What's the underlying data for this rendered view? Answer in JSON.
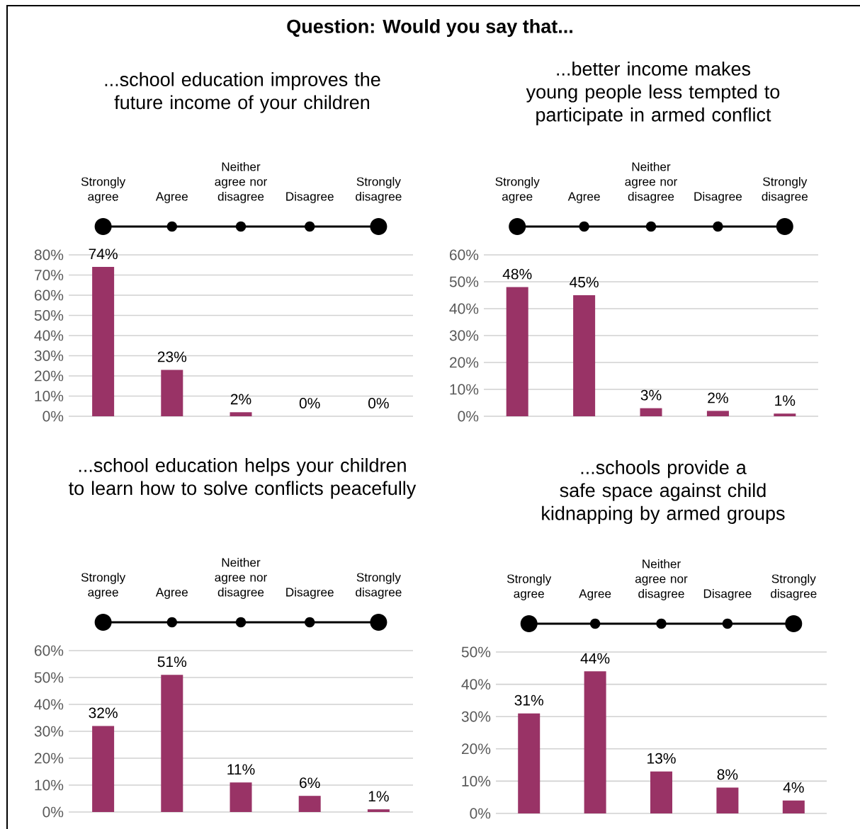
{
  "chart_data": [
    {
      "type": "bar",
      "title": "Question: Would you say that...",
      "subtitle": "...school education improves the future income of your children",
      "categories": [
        "Strongly agree",
        "Agree",
        "Neither agree nor disagree",
        "Disagree",
        "Strongly disagree"
      ],
      "values": [
        74,
        23,
        2,
        0,
        0
      ],
      "value_labels": [
        "74%",
        "23%",
        "2%",
        "0%",
        "0%"
      ],
      "color": "#993366",
      "ylim": [
        0,
        80
      ],
      "yticks": [
        {
          "value": 0,
          "label": "0%"
        },
        {
          "value": 10,
          "label": "10%"
        },
        {
          "value": 20,
          "label": "20%"
        },
        {
          "value": 30,
          "label": "30%"
        },
        {
          "value": 40,
          "label": "40%"
        },
        {
          "value": 50,
          "label": "50%"
        },
        {
          "value": 60,
          "label": "60%"
        },
        {
          "value": 70,
          "label": "70%"
        },
        {
          "value": 80,
          "label": "80%"
        }
      ],
      "grid": "y"
    },
    {
      "type": "bar",
      "title": "...better income makes young people less tempted to participate in armed conflict",
      "categories": [
        "Strongly agree",
        "Agree",
        "Neither agree nor disagree",
        "Disagree",
        "Strongly disagree"
      ],
      "values": [
        48,
        45,
        3,
        2,
        1
      ],
      "value_labels": [
        "48%",
        "45%",
        "3%",
        "2%",
        "1%"
      ],
      "color": "#993366",
      "ylim": [
        0,
        60
      ],
      "yticks": [
        {
          "value": 0,
          "label": "0%"
        },
        {
          "value": 10,
          "label": "10%"
        },
        {
          "value": 20,
          "label": "20%"
        },
        {
          "value": 30,
          "label": "30%"
        },
        {
          "value": 40,
          "label": "40%"
        },
        {
          "value": 50,
          "label": "50%"
        },
        {
          "value": 60,
          "label": "60%"
        }
      ],
      "grid": "y"
    },
    {
      "type": "bar",
      "title": "...school education helps your children to learn how to solve conflicts peacefully",
      "categories": [
        "Strongly agree",
        "Agree",
        "Neither agree nor disagree",
        "Disagree",
        "Strongly disagree"
      ],
      "values": [
        32,
        51,
        11,
        6,
        1
      ],
      "value_labels": [
        "32%",
        "51%",
        "11%",
        "6%",
        "1%"
      ],
      "color": "#993366",
      "ylim": [
        0,
        60
      ],
      "yticks": [
        {
          "value": 0,
          "label": "0%"
        },
        {
          "value": 10,
          "label": "10%"
        },
        {
          "value": 20,
          "label": "20%"
        },
        {
          "value": 30,
          "label": "30%"
        },
        {
          "value": 40,
          "label": "40%"
        },
        {
          "value": 50,
          "label": "50%"
        },
        {
          "value": 60,
          "label": "60%"
        }
      ],
      "grid": "y"
    },
    {
      "type": "bar",
      "title": "...schools provide a safe space against child kidnapping by armed groups",
      "categories": [
        "Strongly agree",
        "Agree",
        "Neither agree nor disagree",
        "Disagree",
        "Strongly disagree"
      ],
      "values": [
        31,
        44,
        13,
        8,
        4
      ],
      "value_labels": [
        "31%",
        "44%",
        "13%",
        "8%",
        "4%"
      ],
      "color": "#993366",
      "ylim": [
        0,
        50
      ],
      "yticks": [
        {
          "value": 0,
          "label": "0%"
        },
        {
          "value": 10,
          "label": "10%"
        },
        {
          "value": 20,
          "label": "20%"
        },
        {
          "value": 30,
          "label": "30%"
        },
        {
          "value": 40,
          "label": "40%"
        },
        {
          "value": 50,
          "label": "50%"
        }
      ],
      "grid": "y"
    }
  ]
}
